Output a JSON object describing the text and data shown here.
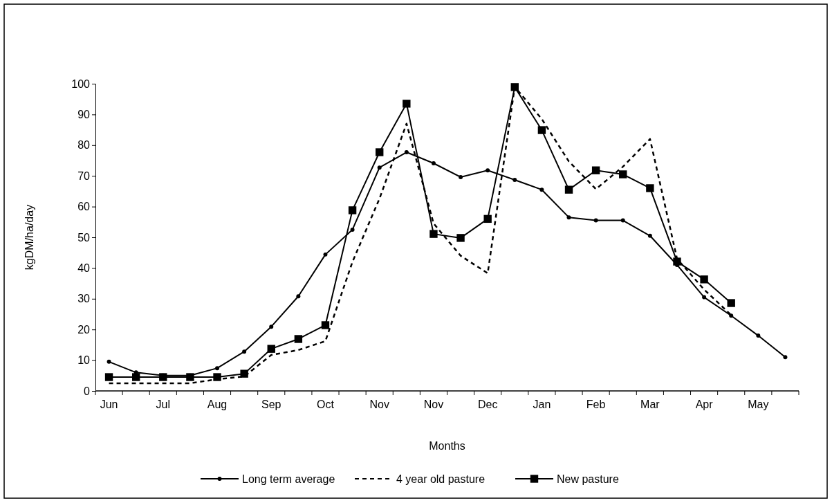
{
  "chart_data": {
    "type": "line",
    "xlabel": "Months",
    "ylabel": "kgDM/ha/day",
    "categories": [
      "Jun",
      null,
      "Jul",
      null,
      "Aug",
      null,
      "Sep",
      null,
      "Oct",
      null,
      "Nov",
      null,
      "Nov",
      null,
      "Dec",
      null,
      "Jan",
      null,
      "Feb",
      null,
      "Mar",
      null,
      "Apr",
      null,
      "May",
      null
    ],
    "ylim": [
      0,
      100
    ],
    "yticks": [
      0,
      10,
      20,
      30,
      40,
      50,
      60,
      70,
      80,
      90,
      100
    ],
    "grid": false,
    "legend": "bottom",
    "series": [
      {
        "name": "Long term average",
        "color": "#000000",
        "marker": "circle",
        "line_style": "solid",
        "values": [
          9.5,
          6,
          5,
          5,
          7.4,
          12.8,
          20.9,
          30.8,
          44.4,
          52.5,
          72.7,
          77.7,
          74.1,
          69.6,
          71.8,
          68.7,
          65.5,
          56.5,
          55.5,
          55.5,
          50.5,
          41,
          30.5,
          24.5,
          18,
          11
        ]
      },
      {
        "name": "4 year old pasture",
        "color": "#000000",
        "marker": "none",
        "line_style": "dashed",
        "values": [
          2.5,
          2.5,
          2.5,
          2.5,
          3.8,
          4.7,
          11.7,
          13.3,
          16.2,
          42,
          62.6,
          87,
          54.5,
          44,
          38.3,
          99,
          88.5,
          74.7,
          65.7,
          73,
          82,
          43,
          33,
          24.7,
          null,
          null
        ]
      },
      {
        "name": "New pasture",
        "color": "#000000",
        "marker": "square",
        "line_style": "solid",
        "values": [
          4.5,
          4.5,
          4.5,
          4.5,
          4.5,
          5.6,
          13.7,
          16.9,
          21.4,
          58.8,
          77.7,
          93.5,
          51.1,
          49.8,
          56,
          98.9,
          84.9,
          65.5,
          71.8,
          70.5,
          66,
          42.1,
          36.3,
          28.6,
          null,
          null
        ]
      }
    ]
  }
}
